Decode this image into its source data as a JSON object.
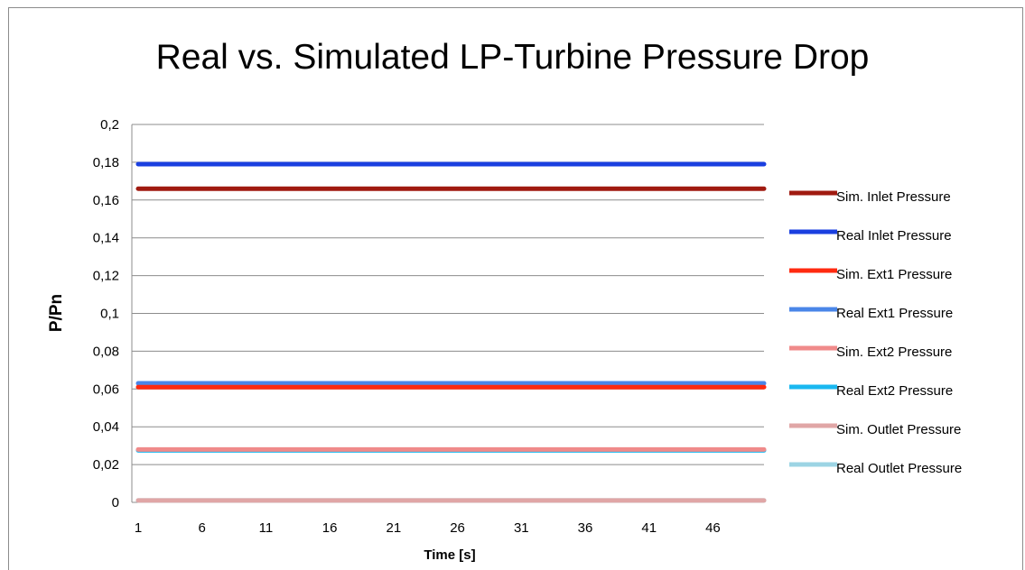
{
  "chart_data": {
    "type": "line",
    "title": "Real vs. Simulated LP-Turbine Pressure Drop",
    "xlabel": "Time [s]",
    "ylabel": "P/Pn",
    "ylim": [
      0,
      0.2
    ],
    "y_ticks": [
      "0",
      "0,02",
      "0,04",
      "0,06",
      "0,08",
      "0,1",
      "0,12",
      "0,14",
      "0,16",
      "0,18",
      "0,2"
    ],
    "x_range": [
      1,
      50
    ],
    "x_ticks": [
      "1",
      "6",
      "11",
      "16",
      "21",
      "26",
      "31",
      "36",
      "41",
      "46"
    ],
    "grid": "horizontal",
    "legend_position": "right",
    "series": [
      {
        "name": "Sim. Inlet Pressure",
        "color": "#a01a10",
        "value": 0.166
      },
      {
        "name": "Real Inlet Pressure",
        "color": "#1a3fe0",
        "value": 0.179
      },
      {
        "name": "Sim. Ext1 Pressure",
        "color": "#ff2a10",
        "value": 0.061
      },
      {
        "name": "Real Ext1 Pressure",
        "color": "#4a86e8",
        "value": 0.063
      },
      {
        "name": "Sim. Ext2 Pressure",
        "color": "#f08a8a",
        "value": 0.028
      },
      {
        "name": "Real Ext2 Pressure",
        "color": "#1ab8f0",
        "value": 0.0275
      },
      {
        "name": "Sim. Outlet Pressure",
        "color": "#e0a6a6",
        "value": 0.001
      },
      {
        "name": "Real Outlet Pressure",
        "color": "#9cd4e4",
        "value": 0.001
      }
    ]
  }
}
